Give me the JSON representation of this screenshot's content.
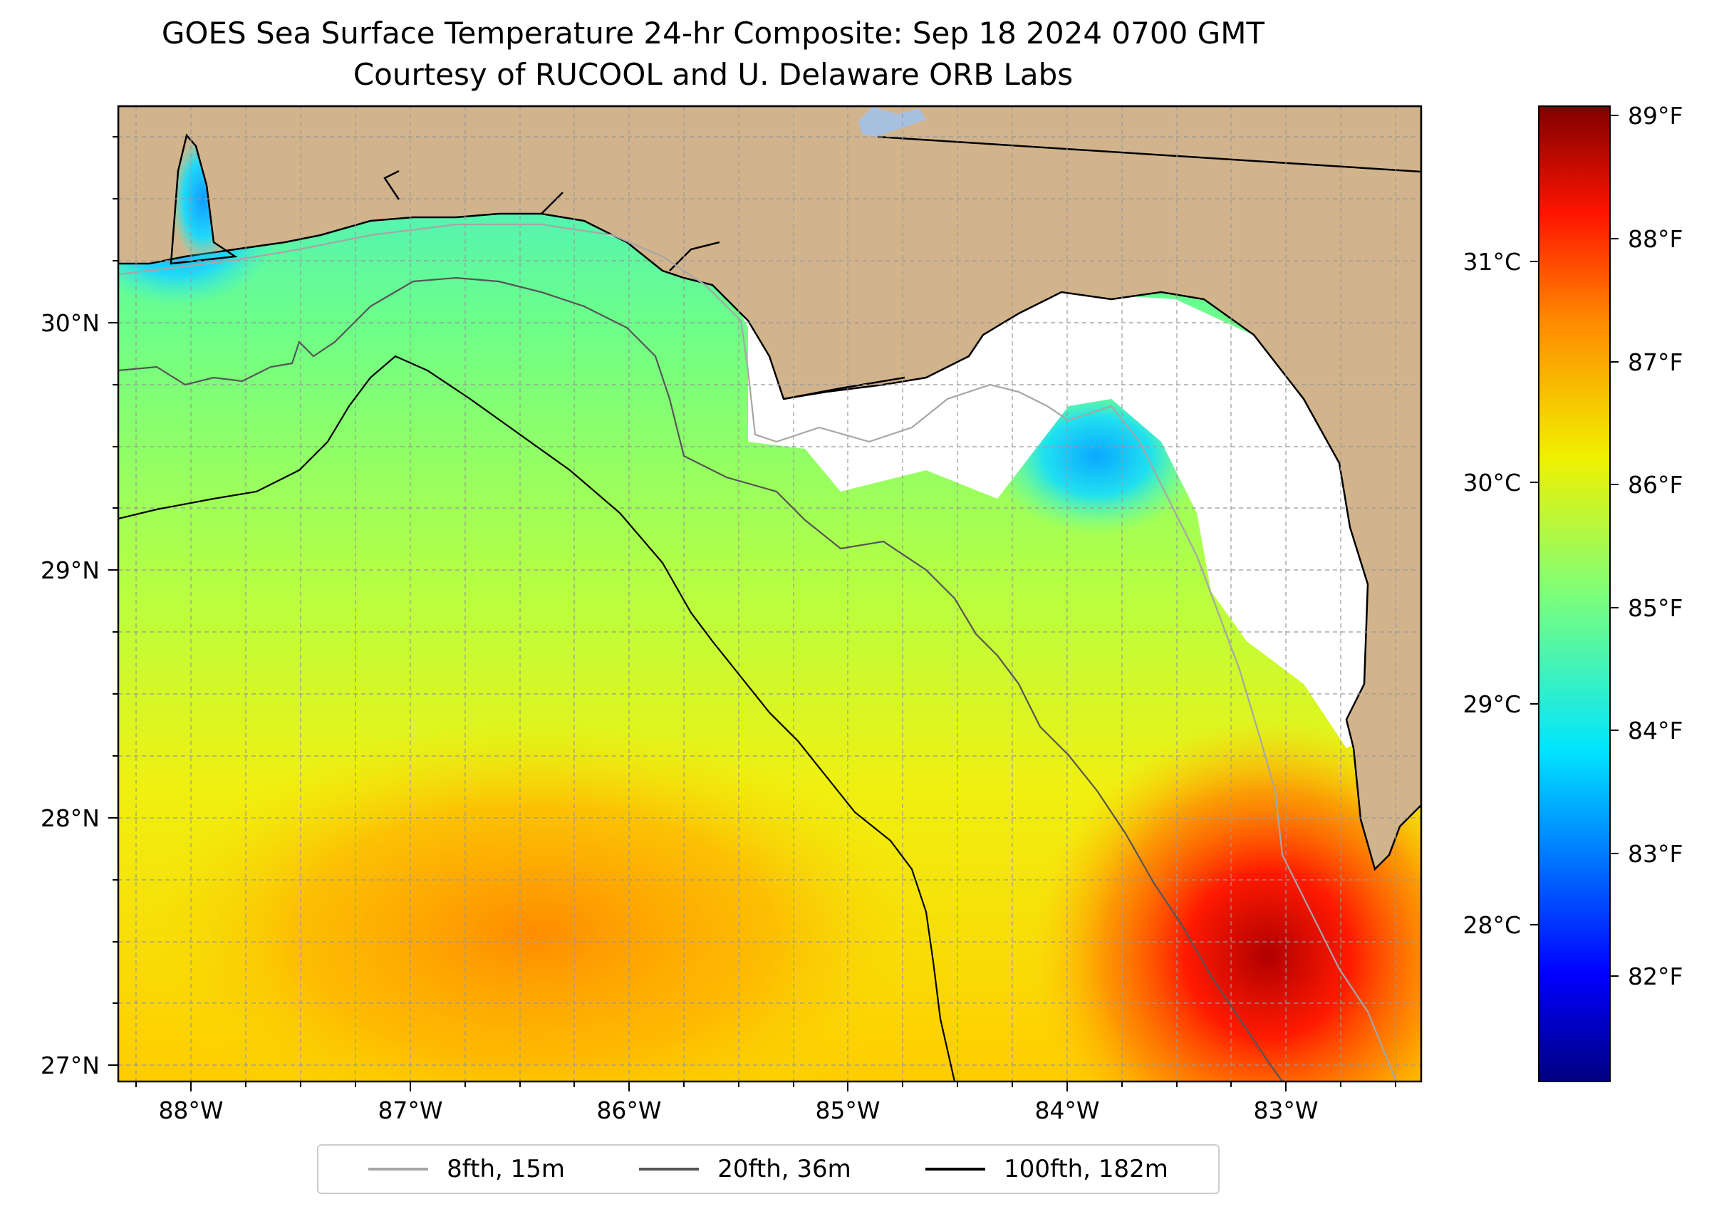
{
  "title_line1": "GOES Sea Surface Temperature 24-hr Composite: Sep 18 2024 0700 GMT",
  "title_line2": "Courtesy of RUCOOL and U. Delaware ORB Labs",
  "x_ticks": [
    "88°W",
    "87°W",
    "86°W",
    "85°W",
    "84°W",
    "83°W"
  ],
  "y_ticks": [
    "30°N",
    "29°N",
    "28°N",
    "27°N"
  ],
  "colorbar": {
    "f_ticks": [
      "89°F",
      "88°F",
      "87°F",
      "86°F",
      "85°F",
      "84°F",
      "83°F",
      "82°F"
    ],
    "c_ticks": [
      "31°C",
      "30°C",
      "29°C",
      "28°C"
    ]
  },
  "legend": [
    {
      "label": "8fth, 15m",
      "color": "#a6a6a6"
    },
    {
      "label": "20fth, 36m",
      "color": "#555555"
    },
    {
      "label": "100fth, 182m",
      "color": "#000000"
    }
  ],
  "colors": {
    "land": "#d2b48c",
    "no_data": "#ffffff",
    "lake": "#a8c0e0"
  }
}
